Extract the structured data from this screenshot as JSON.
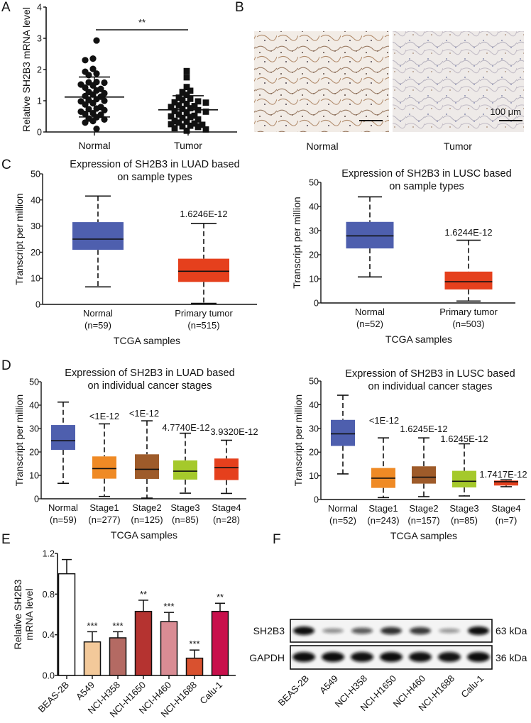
{
  "panel_letters": [
    "A",
    "B",
    "C",
    "D",
    "E",
    "F"
  ],
  "chart_data": [
    {
      "panel": "A",
      "type": "scatter",
      "title": "",
      "xlabel": "",
      "ylabel": "Relative SH2B3 mRNA level",
      "ylim": [
        0,
        4
      ],
      "yticks": [
        "0",
        "1",
        "2",
        "3",
        "4"
      ],
      "significance": "**",
      "categories": [
        "Normal",
        "Tumor"
      ],
      "series": [
        {
          "name": "Normal",
          "marker": "circle",
          "mean": 1.12,
          "sd_upper": 1.76,
          "sd_lower": 0.48,
          "values": [
            2.93,
            2.35,
            2.3,
            2.02,
            1.93,
            1.87,
            1.82,
            1.6,
            1.59,
            1.58,
            1.52,
            1.49,
            1.42,
            1.38,
            1.33,
            1.28,
            1.24,
            1.2,
            1.15,
            1.13,
            1.05,
            1.02,
            1.0,
            0.98,
            0.92,
            0.88,
            0.8,
            0.75,
            0.73,
            0.7,
            0.65,
            0.6,
            0.58,
            0.55,
            0.47,
            0.43,
            0.4,
            0.35,
            0.3,
            0.1
          ]
        },
        {
          "name": "Tumor",
          "marker": "square",
          "mean": 0.71,
          "sd_upper": 1.16,
          "sd_lower": 0.26,
          "values": [
            1.95,
            1.75,
            1.44,
            1.32,
            1.28,
            1.19,
            1.1,
            1.06,
            1.02,
            0.98,
            0.95,
            0.94,
            0.9,
            0.85,
            0.83,
            0.8,
            0.76,
            0.74,
            0.7,
            0.67,
            0.65,
            0.6,
            0.56,
            0.52,
            0.5,
            0.48,
            0.45,
            0.4,
            0.36,
            0.33,
            0.3,
            0.27,
            0.25,
            0.23,
            0.2,
            0.18,
            0.16,
            0.12,
            0.08,
            0.04
          ]
        }
      ]
    },
    {
      "panel": "C-left",
      "type": "box",
      "title": [
        "Expression of SH2B3 in LUAD based",
        "on sample types"
      ],
      "xlabel": "TCGA samples",
      "ylabel": "Transcript per million",
      "ylim": [
        0,
        50
      ],
      "yticks": [
        "0",
        "10",
        "20",
        "30",
        "40",
        "50"
      ],
      "categories": [
        "Normal",
        "Primary tumor"
      ],
      "n_labels": [
        "(n=59)",
        "(n=515)"
      ],
      "pvalues": [
        "",
        "1.6246E-12"
      ],
      "colors": [
        "#4e5fae",
        "#e5401d"
      ],
      "boxes": [
        {
          "min": 6.7,
          "q1": 20.9,
          "median": 25.0,
          "q3": 31.5,
          "max": 41.5
        },
        {
          "min": 0.4,
          "q1": 8.6,
          "median": 12.7,
          "q3": 17.5,
          "max": 31.0
        }
      ]
    },
    {
      "panel": "C-right",
      "type": "box",
      "title": [
        "Expression of SH2B3 in LUSC based",
        "on sample types"
      ],
      "xlabel": "TCGA samples",
      "ylabel": "Transcript per million",
      "ylim": [
        0,
        50
      ],
      "yticks": [
        "0",
        "10",
        "20",
        "30",
        "40",
        "50"
      ],
      "categories": [
        "Normal",
        "Primary tumor"
      ],
      "n_labels": [
        "(n=52)",
        "(n=503)"
      ],
      "pvalues": [
        "",
        "1.6244E-12"
      ],
      "colors": [
        "#4e5fae",
        "#e5401d"
      ],
      "boxes": [
        {
          "min": 10.8,
          "q1": 22.6,
          "median": 27.8,
          "q3": 33.6,
          "max": 44.0
        },
        {
          "min": 0.8,
          "q1": 5.6,
          "median": 8.8,
          "q3": 13.0,
          "max": 26.0
        }
      ]
    },
    {
      "panel": "D-left",
      "type": "box",
      "title": [
        "Expression of SH2B3 in LUAD based",
        "on individual cancer stages"
      ],
      "xlabel": "TCGA samples",
      "ylabel": "Transcript per million",
      "ylim": [
        0,
        50
      ],
      "yticks": [
        "0",
        "10",
        "20",
        "30",
        "40",
        "50"
      ],
      "categories": [
        "Normal",
        "Stage1",
        "Stage2",
        "Stage3",
        "Stage4"
      ],
      "n_labels": [
        "(n=59)",
        "(n=277)",
        "(n=125)",
        "(n=85)",
        "(n=28)"
      ],
      "pvalues": [
        "",
        "<1E-12",
        "<1E-12",
        "4.7740E-12",
        "3.9320E-12"
      ],
      "colors": [
        "#4e5fae",
        "#ef8a25",
        "#9e5b2a",
        "#a5c92b",
        "#e5401d"
      ],
      "boxes": [
        {
          "min": 6.6,
          "q1": 20.9,
          "median": 24.8,
          "q3": 31.5,
          "max": 41.3
        },
        {
          "min": 1.0,
          "q1": 8.6,
          "median": 12.9,
          "q3": 18.1,
          "max": 32.0
        },
        {
          "min": 0.3,
          "q1": 8.5,
          "median": 12.6,
          "q3": 19.0,
          "max": 33.3
        },
        {
          "min": 2.4,
          "q1": 8.2,
          "median": 11.8,
          "q3": 16.4,
          "max": 28.0
        },
        {
          "min": 2.3,
          "q1": 8.0,
          "median": 13.3,
          "q3": 17.2,
          "max": 25.0
        }
      ]
    },
    {
      "panel": "D-right",
      "type": "box",
      "title": [
        "Expression of SH2B3 in LUSC based",
        "on individual cancer stages"
      ],
      "xlabel": "TCGA samples",
      "ylabel": "Transcript per million",
      "ylim": [
        0,
        50
      ],
      "yticks": [
        "0",
        "10",
        "20",
        "30",
        "40",
        "50"
      ],
      "categories": [
        "Normal",
        "Stage1",
        "Stage2",
        "Stage3",
        "Stage4"
      ],
      "n_labels": [
        "(n=52)",
        "(n=243)",
        "(n=157)",
        "(n=85)",
        "(n=7)"
      ],
      "pvalues": [
        "",
        "<1E-12",
        "1.6245E-12",
        "1.6245E-12",
        "1.7417E-12"
      ],
      "colors": [
        "#4e5fae",
        "#ef8a25",
        "#9e5b2a",
        "#a5c92b",
        "#e5401d"
      ],
      "boxes": [
        {
          "min": 10.8,
          "q1": 22.6,
          "median": 27.7,
          "q3": 33.6,
          "max": 44.0
        },
        {
          "min": 0.8,
          "q1": 4.9,
          "median": 9.0,
          "q3": 13.3,
          "max": 26.0
        },
        {
          "min": 1.2,
          "q1": 6.7,
          "median": 9.4,
          "q3": 14.0,
          "max": 26.0
        },
        {
          "min": 1.5,
          "q1": 5.1,
          "median": 7.7,
          "q3": 12.1,
          "max": 23.5
        },
        {
          "min": 5.4,
          "q1": 5.9,
          "median": 7.5,
          "q3": 8.0,
          "max": 8.3
        }
      ]
    },
    {
      "panel": "E",
      "type": "bar",
      "title": "",
      "xlabel": "",
      "ylabel": [
        "Relative SH2B3",
        "mRNA level"
      ],
      "ylim": [
        0,
        1.2
      ],
      "yticks": [
        "0.0",
        "0.4",
        "0.8",
        "1.2"
      ],
      "categories": [
        "BEAS-2B",
        "A549",
        "NCI-H358",
        "NCI-H1650",
        "NCI-H460",
        "NCI-H1688",
        "Calu-1"
      ],
      "values": [
        1.0,
        0.33,
        0.37,
        0.63,
        0.53,
        0.17,
        0.63
      ],
      "errors": [
        0.14,
        0.1,
        0.06,
        0.11,
        0.09,
        0.08,
        0.08
      ],
      "significance": [
        "",
        "***",
        "***",
        "**",
        "***",
        "***",
        "**"
      ],
      "colors": [
        "#ffffff",
        "#f3c99a",
        "#b46a63",
        "#b53330",
        "#d98c94",
        "#d9512f",
        "#c8104c"
      ]
    }
  ],
  "panel_b": {
    "labels": [
      "Normal",
      "Tumor"
    ],
    "scale_bar": "100 μm"
  },
  "panel_f": {
    "proteins": [
      "SH2B3",
      "GAPDH"
    ],
    "sizes": [
      "63 kDa",
      "36 kDa"
    ],
    "lanes": [
      "BEAS-2B",
      "A549",
      "NCI-H358",
      "NCI-H1650",
      "NCI-H460",
      "NCI-H1688",
      "Calu-1"
    ],
    "sh2b3_intensity": [
      1.0,
      0.25,
      0.55,
      0.8,
      0.75,
      0.2,
      1.0
    ],
    "gapdh_intensity": [
      1.0,
      1.0,
      0.95,
      1.0,
      0.95,
      0.9,
      1.0
    ]
  }
}
